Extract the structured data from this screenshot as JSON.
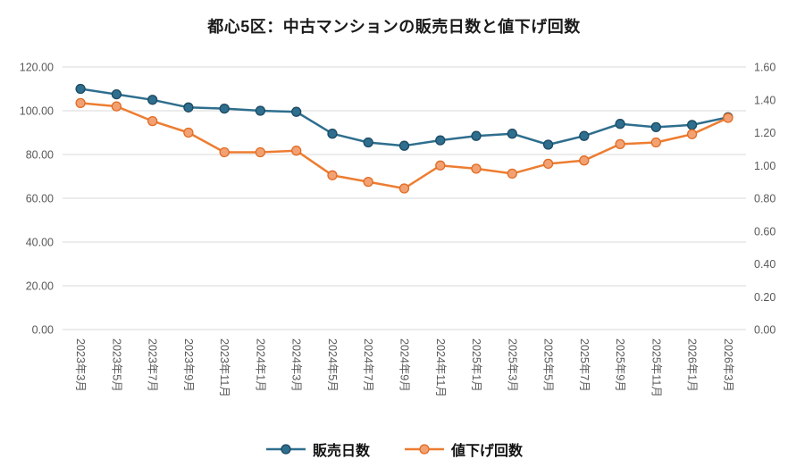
{
  "chart_data": {
    "type": "line",
    "title": "都心5区：中古マンションの販売日数と値下げ回数",
    "categories": [
      "2023年3月",
      "2023年5月",
      "2023年7月",
      "2023年9月",
      "2023年11月",
      "2024年1月",
      "2024年3月",
      "2024年5月",
      "2024年7月",
      "2024年9月",
      "2024年11月",
      "2025年1月",
      "2025年3月",
      "2025年5月",
      "2025年7月",
      "2025年9月",
      "2025年11月",
      "2026年1月",
      "2026年3月"
    ],
    "series": [
      {
        "id": "sales-days",
        "name": "販売日数",
        "axis": "left",
        "color": "#2e6e8e",
        "marker_fill": "#2e6e8e",
        "marker_stroke": "#1d4a61",
        "values": [
          110.0,
          107.5,
          105.0,
          101.5,
          101.0,
          100.0,
          99.5,
          89.5,
          85.5,
          84.0,
          86.5,
          88.5,
          89.5,
          84.5,
          88.5,
          94.0,
          92.5,
          93.5,
          97.0
        ]
      },
      {
        "id": "price-cuts",
        "name": "値下げ回数",
        "axis": "right",
        "color": "#ed7d31",
        "marker_fill": "#f2a173",
        "marker_stroke": "#e26b24",
        "values": [
          1.38,
          1.36,
          1.27,
          1.2,
          1.08,
          1.08,
          1.09,
          0.94,
          0.9,
          0.86,
          1.0,
          0.98,
          0.95,
          1.01,
          1.03,
          1.13,
          1.14,
          1.19,
          1.29
        ]
      }
    ],
    "left_axis": {
      "min": 0,
      "max": 120,
      "tick_labels": [
        "0.00",
        "20.00",
        "40.00",
        "60.00",
        "80.00",
        "100.00",
        "120.00"
      ]
    },
    "right_axis": {
      "min": 0,
      "max": 1.6,
      "tick_labels": [
        "0.00",
        "0.20",
        "0.40",
        "0.60",
        "0.80",
        "1.00",
        "1.20",
        "1.40",
        "1.60"
      ]
    },
    "grid": true,
    "legend_position": "bottom"
  },
  "styles": {
    "grid_color": "#d9d9d9",
    "tick_color": "#595959",
    "title_color": "#1a1a1a",
    "background": "#ffffff"
  }
}
